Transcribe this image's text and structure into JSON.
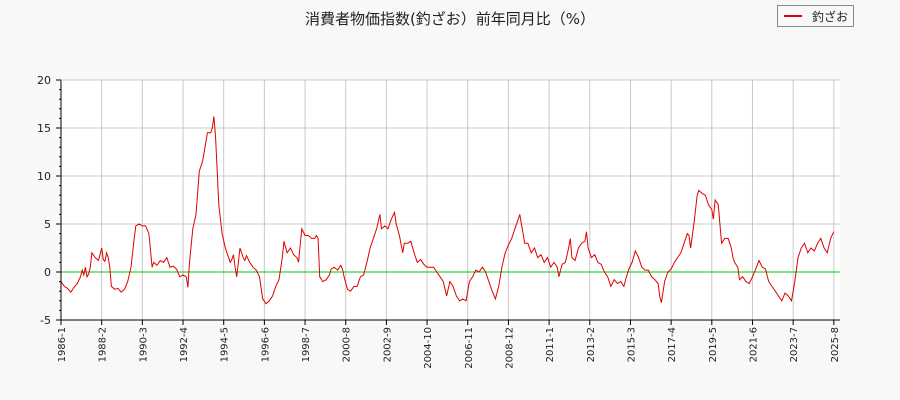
{
  "title": "消費者物価指数(釣ざお）前年同月比（%）",
  "legend": [
    {
      "label": "釣ざお",
      "color": "#e00000"
    }
  ],
  "colors": {
    "series": "#e00000",
    "zero_line": "#00cc00",
    "grid": "#c8c8c8",
    "axis": "#000000",
    "background": "#f8f8f8"
  },
  "chart_data": {
    "type": "line",
    "title": "消費者物価指数(釣ざお）前年同月比（%）",
    "xlabel": "",
    "ylabel": "",
    "ylim": [
      -5,
      20
    ],
    "yticks": [
      -5,
      0,
      5,
      10,
      15,
      20
    ],
    "xticks": [
      "1986-1",
      "1988-2",
      "1990-3",
      "1992-4",
      "1994-5",
      "1996-6",
      "1998-7",
      "2000-8",
      "2002-9",
      "2004-10",
      "2006-11",
      "2008-12",
      "2011-1",
      "2013-2",
      "2015-3",
      "2017-4",
      "2019-5",
      "2021-6",
      "2023-7",
      "2025-8"
    ],
    "grid": true,
    "legend_position": "top-right",
    "reference_line": 0,
    "series": [
      {
        "name": "釣ざお",
        "note": "keypoints: [months since 1986-1, value %]",
        "points": [
          [
            0,
            -1.0
          ],
          [
            2,
            -1.5
          ],
          [
            4,
            -1.7
          ],
          [
            6,
            -2.1
          ],
          [
            8,
            -1.6
          ],
          [
            10,
            -1.2
          ],
          [
            12,
            -0.5
          ],
          [
            13,
            0.2
          ],
          [
            14,
            -0.3
          ],
          [
            15,
            0.5
          ],
          [
            16,
            -0.5
          ],
          [
            17,
            -0.2
          ],
          [
            18,
            0.5
          ],
          [
            19,
            2.0
          ],
          [
            21,
            1.5
          ],
          [
            23,
            1.2
          ],
          [
            24,
            1.8
          ],
          [
            25,
            2.5
          ],
          [
            26,
            1.3
          ],
          [
            27,
            1.1
          ],
          [
            28,
            2.0
          ],
          [
            29,
            1.5
          ],
          [
            30,
            0.5
          ],
          [
            31,
            -1.5
          ],
          [
            33,
            -1.8
          ],
          [
            35,
            -1.7
          ],
          [
            37,
            -2.1
          ],
          [
            39,
            -1.8
          ],
          [
            41,
            -1.0
          ],
          [
            43,
            0.5
          ],
          [
            45,
            3.5
          ],
          [
            46,
            4.8
          ],
          [
            48,
            5.0
          ],
          [
            50,
            4.8
          ],
          [
            52,
            4.8
          ],
          [
            54,
            4.0
          ],
          [
            56,
            0.5
          ],
          [
            57,
            1.0
          ],
          [
            59,
            0.7
          ],
          [
            61,
            1.2
          ],
          [
            63,
            1.0
          ],
          [
            65,
            1.5
          ],
          [
            67,
            0.5
          ],
          [
            69,
            0.6
          ],
          [
            71,
            0.3
          ],
          [
            73,
            -0.5
          ],
          [
            75,
            -0.3
          ],
          [
            77,
            -0.5
          ],
          [
            78,
            -1.6
          ],
          [
            79,
            1.0
          ],
          [
            81,
            4.5
          ],
          [
            83,
            6.0
          ],
          [
            85,
            10.5
          ],
          [
            87,
            11.5
          ],
          [
            88,
            12.5
          ],
          [
            90,
            14.5
          ],
          [
            92,
            14.5
          ],
          [
            93,
            15.0
          ],
          [
            94,
            16.2
          ],
          [
            95,
            14.0
          ],
          [
            97,
            7.0
          ],
          [
            99,
            4.0
          ],
          [
            101,
            2.5
          ],
          [
            103,
            1.5
          ],
          [
            104,
            1.0
          ],
          [
            105,
            1.3
          ],
          [
            106,
            1.8
          ],
          [
            107,
            0.5
          ],
          [
            108,
            -0.5
          ],
          [
            110,
            2.5
          ],
          [
            112,
            1.5
          ],
          [
            113,
            1.2
          ],
          [
            114,
            1.7
          ],
          [
            116,
            1.0
          ],
          [
            118,
            0.5
          ],
          [
            120,
            0.2
          ],
          [
            122,
            -0.5
          ],
          [
            124,
            -2.8
          ],
          [
            126,
            -3.3
          ],
          [
            128,
            -3.0
          ],
          [
            130,
            -2.5
          ],
          [
            132,
            -1.5
          ],
          [
            134,
            -0.8
          ],
          [
            136,
            1.5
          ],
          [
            137,
            3.2
          ],
          [
            139,
            2.0
          ],
          [
            141,
            2.5
          ],
          [
            143,
            1.8
          ],
          [
            145,
            1.5
          ],
          [
            146,
            1.0
          ],
          [
            148,
            4.5
          ],
          [
            150,
            3.8
          ],
          [
            152,
            3.8
          ],
          [
            154,
            3.5
          ],
          [
            156,
            3.5
          ],
          [
            157,
            3.8
          ],
          [
            158,
            3.5
          ],
          [
            159,
            -0.5
          ],
          [
            161,
            -1.0
          ],
          [
            163,
            -0.8
          ],
          [
            165,
            -0.3
          ],
          [
            166,
            0.3
          ],
          [
            168,
            0.5
          ],
          [
            170,
            0.2
          ],
          [
            172,
            0.7
          ],
          [
            173,
            0.3
          ],
          [
            174,
            -0.5
          ],
          [
            176,
            -1.8
          ],
          [
            178,
            -2.0
          ],
          [
            180,
            -1.5
          ],
          [
            182,
            -1.5
          ],
          [
            184,
            -0.5
          ],
          [
            186,
            -0.3
          ],
          [
            188,
            1.0
          ],
          [
            190,
            2.5
          ],
          [
            192,
            3.5
          ],
          [
            194,
            4.5
          ],
          [
            196,
            6.0
          ],
          [
            197,
            4.5
          ],
          [
            199,
            4.8
          ],
          [
            201,
            4.5
          ],
          [
            203,
            5.5
          ],
          [
            205,
            6.2
          ],
          [
            206,
            5.0
          ],
          [
            208,
            3.8
          ],
          [
            210,
            2.0
          ],
          [
            211,
            3.0
          ],
          [
            213,
            3.0
          ],
          [
            215,
            3.2
          ],
          [
            217,
            2.0
          ],
          [
            219,
            1.0
          ],
          [
            221,
            1.3
          ],
          [
            223,
            0.8
          ],
          [
            225,
            0.5
          ],
          [
            227,
            0.5
          ],
          [
            229,
            0.5
          ],
          [
            231,
            0.0
          ],
          [
            233,
            -0.5
          ],
          [
            235,
            -1.0
          ],
          [
            237,
            -2.5
          ],
          [
            239,
            -1.0
          ],
          [
            241,
            -1.5
          ],
          [
            243,
            -2.5
          ],
          [
            245,
            -3.0
          ],
          [
            247,
            -2.8
          ],
          [
            249,
            -3.0
          ],
          [
            251,
            -1.0
          ],
          [
            253,
            -0.5
          ],
          [
            255,
            0.2
          ],
          [
            257,
            0.0
          ],
          [
            259,
            0.5
          ],
          [
            261,
            0.0
          ],
          [
            263,
            -1.0
          ],
          [
            265,
            -2.0
          ],
          [
            267,
            -2.8
          ],
          [
            269,
            -1.5
          ],
          [
            271,
            0.5
          ],
          [
            273,
            2.0
          ],
          [
            275,
            2.8
          ],
          [
            277,
            3.5
          ],
          [
            279,
            4.5
          ],
          [
            281,
            5.5
          ],
          [
            282,
            6.0
          ],
          [
            283,
            5.0
          ],
          [
            284,
            4.0
          ],
          [
            285,
            3.0
          ],
          [
            287,
            3.0
          ],
          [
            289,
            2.0
          ],
          [
            291,
            2.5
          ],
          [
            293,
            1.5
          ],
          [
            295,
            1.8
          ],
          [
            297,
            1.0
          ],
          [
            299,
            1.5
          ],
          [
            301,
            0.5
          ],
          [
            303,
            1.0
          ],
          [
            305,
            0.5
          ],
          [
            306,
            -0.5
          ],
          [
            308,
            0.8
          ],
          [
            310,
            1.0
          ],
          [
            312,
            2.5
          ],
          [
            313,
            3.5
          ],
          [
            314,
            1.5
          ],
          [
            316,
            1.2
          ],
          [
            318,
            2.5
          ],
          [
            320,
            3.0
          ],
          [
            322,
            3.2
          ],
          [
            323,
            4.2
          ],
          [
            324,
            2.5
          ],
          [
            326,
            1.5
          ],
          [
            328,
            1.8
          ],
          [
            330,
            1.0
          ],
          [
            332,
            0.8
          ],
          [
            334,
            0.0
          ],
          [
            336,
            -0.5
          ],
          [
            338,
            -1.5
          ],
          [
            340,
            -0.8
          ],
          [
            342,
            -1.2
          ],
          [
            344,
            -1.0
          ],
          [
            346,
            -1.5
          ],
          [
            347,
            -0.8
          ],
          [
            349,
            0.3
          ],
          [
            351,
            1.0
          ],
          [
            353,
            2.2
          ],
          [
            355,
            1.5
          ],
          [
            357,
            0.5
          ],
          [
            359,
            0.2
          ],
          [
            361,
            0.2
          ],
          [
            363,
            -0.5
          ],
          [
            365,
            -0.8
          ],
          [
            367,
            -1.2
          ],
          [
            368,
            -2.5
          ],
          [
            369,
            -3.2
          ],
          [
            371,
            -1.0
          ],
          [
            373,
            0.0
          ],
          [
            375,
            0.3
          ],
          [
            377,
            1.0
          ],
          [
            379,
            1.5
          ],
          [
            381,
            2.0
          ],
          [
            383,
            3.0
          ],
          [
            385,
            4.0
          ],
          [
            386,
            3.8
          ],
          [
            387,
            2.5
          ],
          [
            389,
            5.0
          ],
          [
            391,
            8.0
          ],
          [
            392,
            8.5
          ],
          [
            394,
            8.2
          ],
          [
            396,
            8.0
          ],
          [
            398,
            7.0
          ],
          [
            400,
            6.5
          ],
          [
            401,
            5.5
          ],
          [
            402,
            7.5
          ],
          [
            404,
            7.0
          ],
          [
            405,
            5.0
          ],
          [
            406,
            3.0
          ],
          [
            408,
            3.5
          ],
          [
            410,
            3.5
          ],
          [
            412,
            2.5
          ],
          [
            413,
            1.5
          ],
          [
            414,
            1.0
          ],
          [
            416,
            0.5
          ],
          [
            417,
            -0.8
          ],
          [
            419,
            -0.5
          ],
          [
            421,
            -1.0
          ],
          [
            423,
            -1.2
          ],
          [
            425,
            -0.5
          ],
          [
            427,
            0.3
          ],
          [
            429,
            1.2
          ],
          [
            431,
            0.5
          ],
          [
            433,
            0.3
          ],
          [
            435,
            -1.0
          ],
          [
            437,
            -1.5
          ],
          [
            439,
            -2.0
          ],
          [
            441,
            -2.5
          ],
          [
            443,
            -3.0
          ],
          [
            445,
            -2.2
          ],
          [
            447,
            -2.5
          ],
          [
            449,
            -3.0
          ],
          [
            451,
            -1.0
          ],
          [
            453,
            1.5
          ],
          [
            455,
            2.5
          ],
          [
            457,
            3.0
          ],
          [
            459,
            2.0
          ],
          [
            461,
            2.5
          ],
          [
            463,
            2.2
          ],
          [
            465,
            3.0
          ],
          [
            467,
            3.5
          ],
          [
            469,
            2.5
          ],
          [
            471,
            2.0
          ],
          [
            473,
            3.5
          ],
          [
            475,
            4.2
          ]
        ]
      }
    ]
  }
}
